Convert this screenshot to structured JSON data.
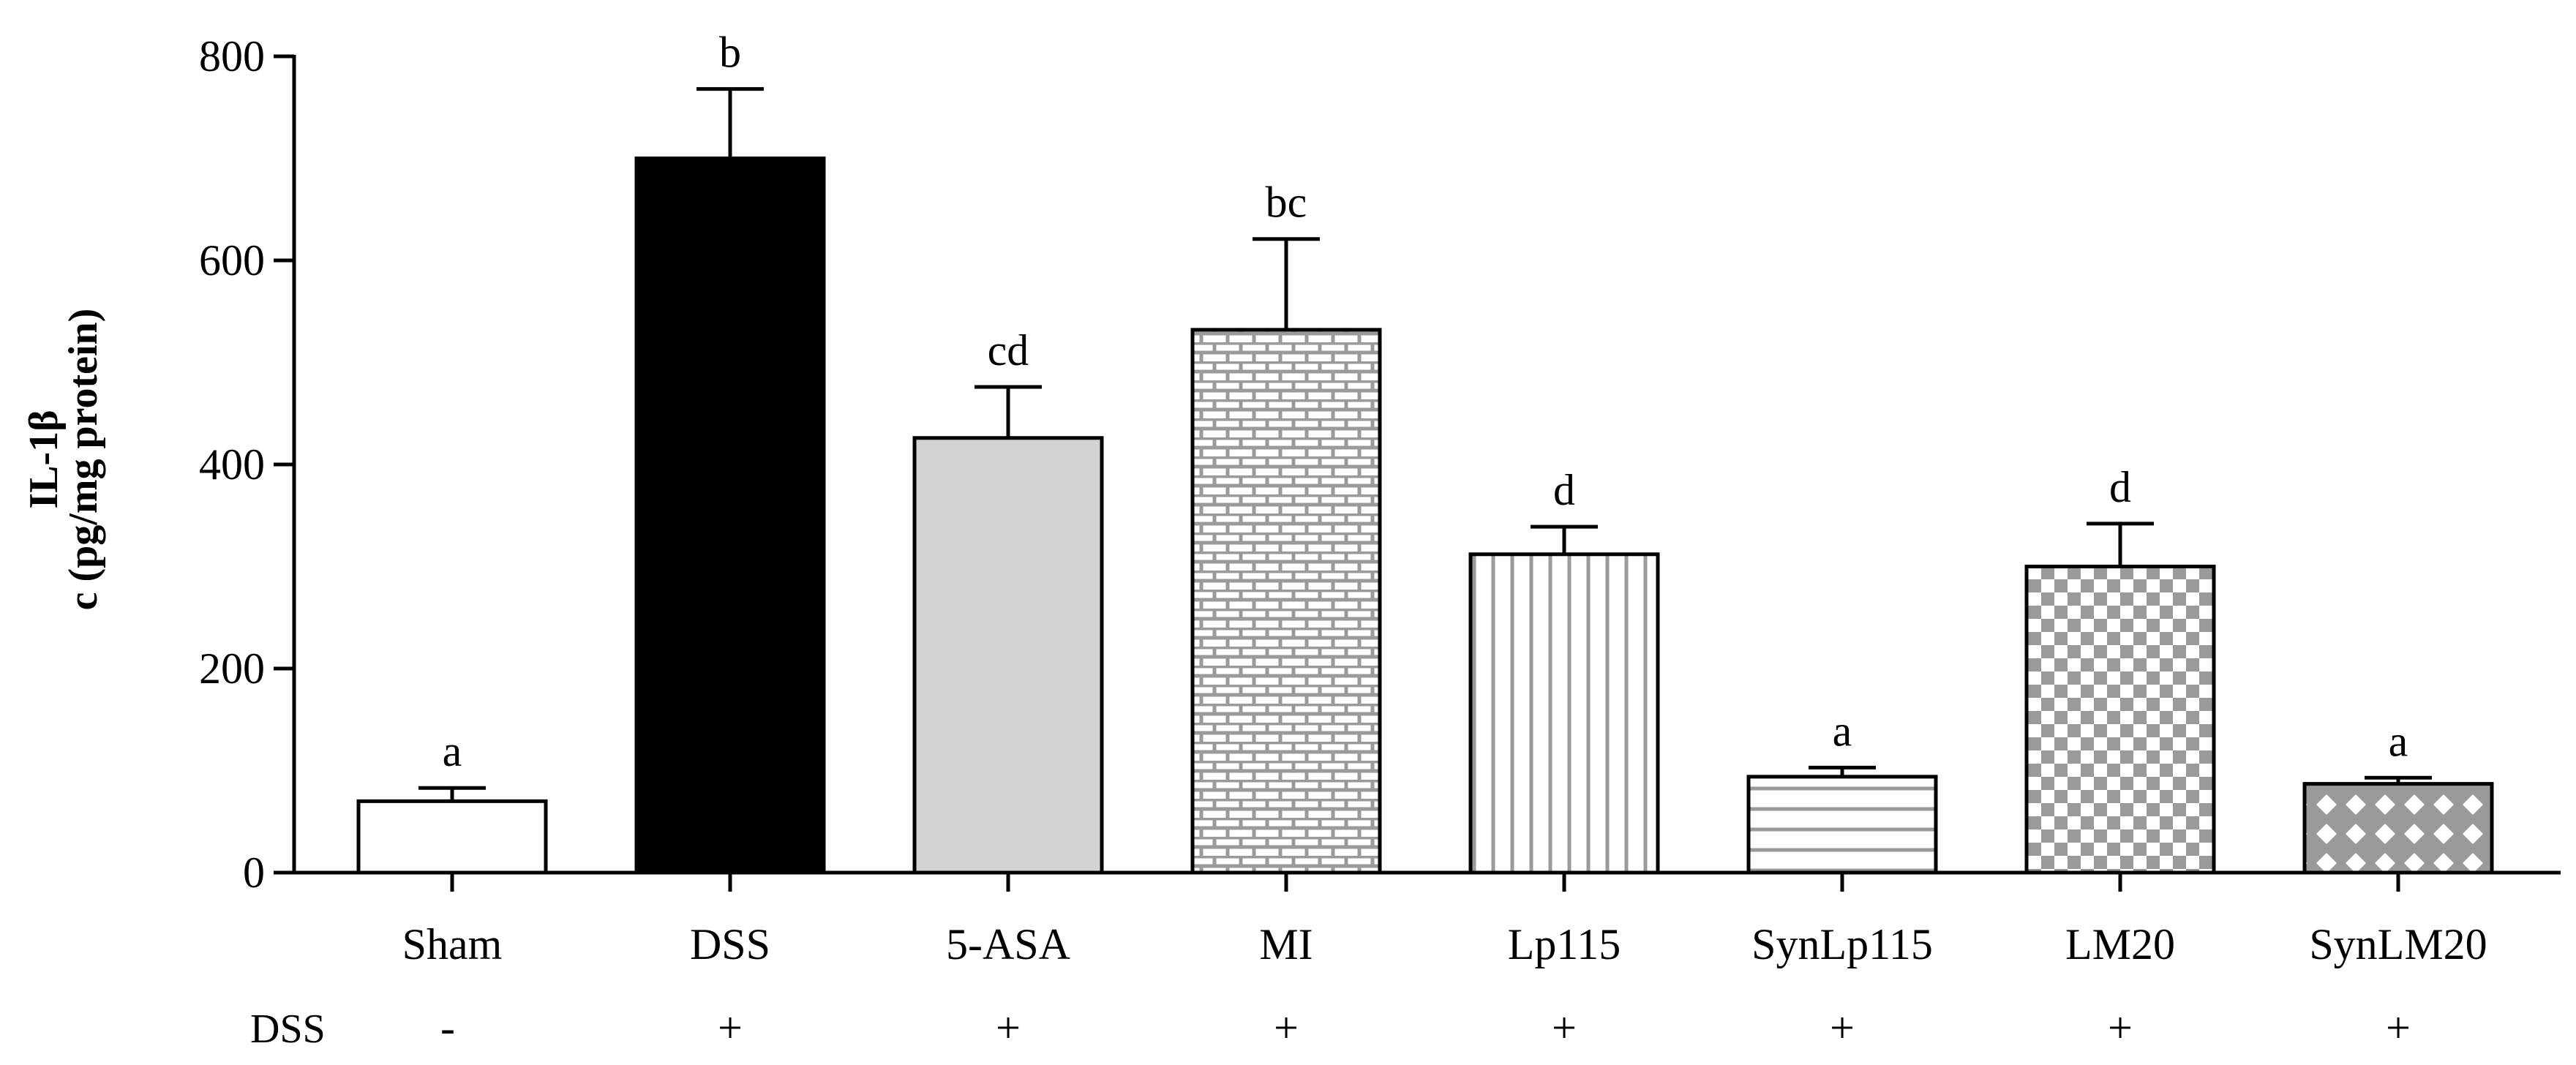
{
  "chart_data": {
    "type": "bar",
    "ylabel_line1": "IL-1β",
    "ylabel_line2": "c (pg/mg protein)",
    "ylim": [
      0,
      800
    ],
    "yticks": [
      "0",
      "200",
      "400",
      "600",
      "800"
    ],
    "ytick_values": [
      0,
      200,
      400,
      600,
      800
    ],
    "categories": [
      "Sham",
      "DSS",
      "5-ASA",
      "MI",
      "Lp115",
      "SynLp115",
      "LM20",
      "SynLM20"
    ],
    "values": [
      70,
      700,
      426,
      532,
      312,
      94,
      300,
      87
    ],
    "errors": [
      13,
      68,
      50,
      89,
      27,
      9,
      42,
      6
    ],
    "significance": [
      "a",
      "b",
      "cd",
      "bc",
      "d",
      "a",
      "d",
      "a"
    ],
    "fills": [
      "white",
      "black",
      "lightgray",
      "brick",
      "vlines",
      "hlines",
      "checker",
      "lattice"
    ],
    "dss_row_label": "DSS",
    "dss_row": [
      "-",
      "+",
      "+",
      "+",
      "+",
      "+",
      "+",
      "+"
    ],
    "colors": {
      "black": "#000000",
      "lightgray": "#d3d3d3",
      "pattern": "#9a9a9a"
    }
  }
}
